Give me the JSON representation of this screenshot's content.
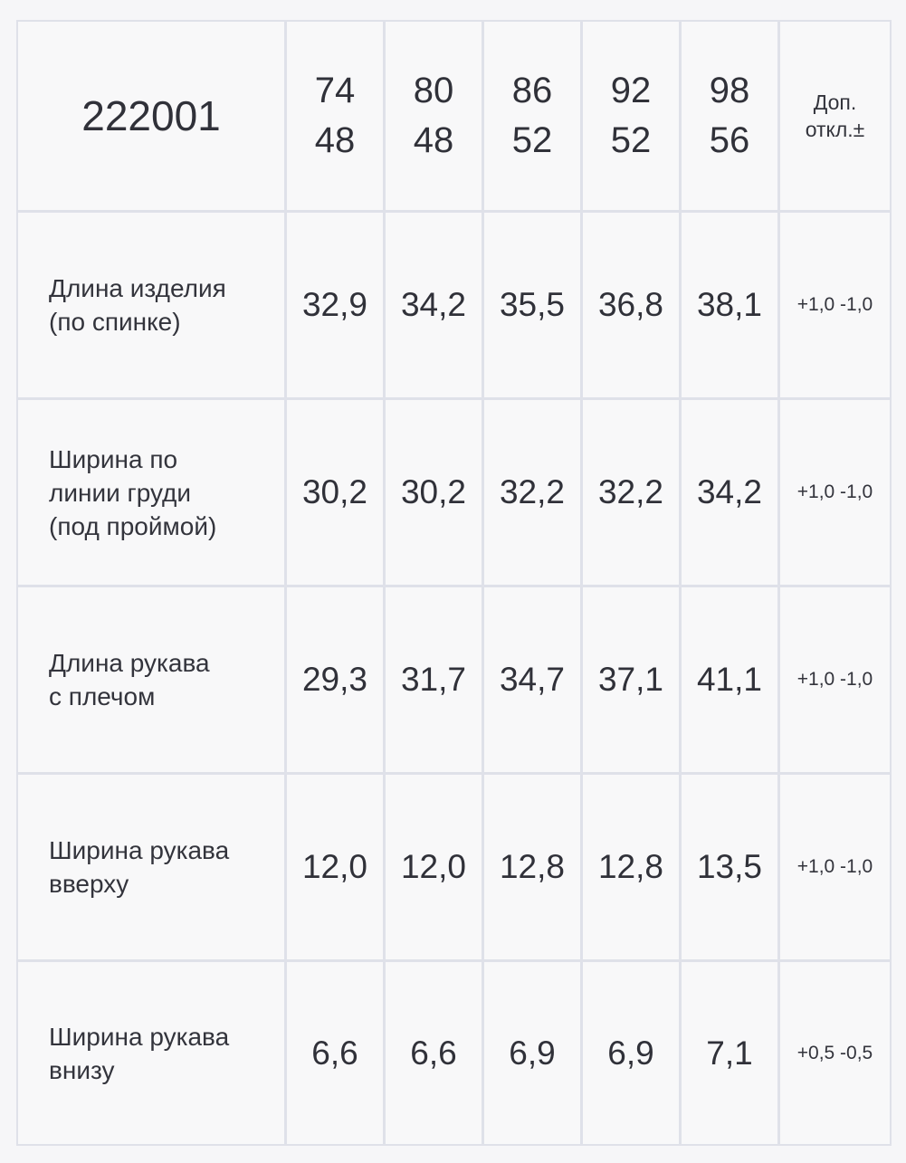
{
  "table": {
    "article": "222001",
    "size_columns": [
      {
        "label": "74\n48"
      },
      {
        "label": "80\n48"
      },
      {
        "label": "86\n52"
      },
      {
        "label": "92\n52"
      },
      {
        "label": "98\n56"
      }
    ],
    "tolerance_header": {
      "label": "Доп.\nоткл.±"
    },
    "rows": [
      {
        "label": "Длина изделия\n(по спинке)",
        "values": [
          "32,9",
          "34,2",
          "35,5",
          "36,8",
          "38,1"
        ],
        "tolerance": "+1,0 -1,0"
      },
      {
        "label": "Ширина по\nлинии груди\n(под проймой)",
        "values": [
          "30,2",
          "30,2",
          "32,2",
          "32,2",
          "34,2"
        ],
        "tolerance": "+1,0 -1,0"
      },
      {
        "label": "Длина рукава\nс плечом",
        "values": [
          "29,3",
          "31,7",
          "34,7",
          "37,1",
          "41,1"
        ],
        "tolerance": "+1,0 -1,0"
      },
      {
        "label": "Ширина рукава\nвверху",
        "values": [
          "12,0",
          "12,0",
          "12,8",
          "12,8",
          "13,5"
        ],
        "tolerance": "+1,0 -1,0"
      },
      {
        "label": "Ширина рукава\nвнизу",
        "values": [
          "6,6",
          "6,6",
          "6,9",
          "6,9",
          "7,1"
        ],
        "tolerance": "+0,5 -0,5"
      }
    ]
  }
}
